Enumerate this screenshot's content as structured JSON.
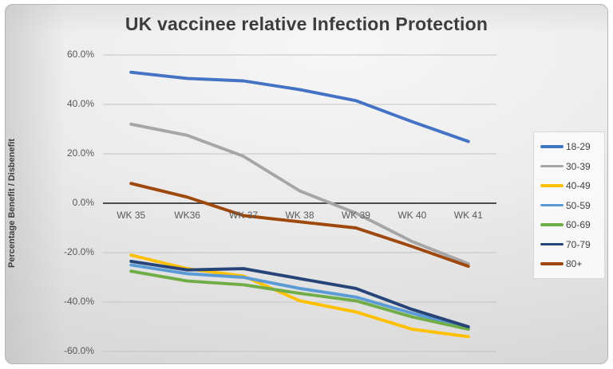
{
  "chart_data": {
    "type": "line",
    "title": "UK vaccinee relative Infection Protection",
    "xlabel": "",
    "ylabel": "Percentage Benefit / Disbenefit",
    "categories": [
      "WK 35",
      "WK36",
      "WK 37",
      "WK 38",
      "WK 39",
      "WK 40",
      "WK 41"
    ],
    "y_tick_values": [
      60,
      40,
      20,
      0,
      -20,
      -40,
      -60
    ],
    "y_tick_labels": [
      "60.0%",
      "40.0%",
      "20.0%",
      "0.0%",
      "-20.0%",
      "-40.0%",
      "-60.0%"
    ],
    "ylim": [
      -60,
      60
    ],
    "grid": true,
    "legend_position": "right",
    "zero_axis_color": "#4d4d4d",
    "gridline_color": "#c3c3c3",
    "series": [
      {
        "name": "18-29",
        "color": "#4472C4",
        "values": [
          53,
          50.5,
          49.5,
          46,
          41.5,
          33,
          25
        ]
      },
      {
        "name": "30-39",
        "color": "#A6A6A6",
        "values": [
          32,
          27.5,
          19,
          5,
          -4,
          -15.5,
          -24.5
        ]
      },
      {
        "name": "40-49",
        "color": "#FFC000",
        "values": [
          -21,
          -26.5,
          -29.5,
          -39.5,
          -44,
          -51,
          -54
        ]
      },
      {
        "name": "50-59",
        "color": "#5B9BD5",
        "values": [
          -25,
          -28.5,
          -30,
          -34.5,
          -38,
          -44.5,
          -50.5
        ]
      },
      {
        "name": "60-69",
        "color": "#70AD47",
        "values": [
          -27.5,
          -31.5,
          -33,
          -36.5,
          -39.5,
          -46,
          -51
        ]
      },
      {
        "name": "70-79",
        "color": "#264478",
        "values": [
          -23.5,
          -27,
          -26.5,
          -30.5,
          -34.5,
          -43,
          -50
        ]
      },
      {
        "name": "80+",
        "color": "#9E480E",
        "values": [
          8,
          2.5,
          -5,
          -7.5,
          -10,
          -17.5,
          -25.5
        ]
      }
    ]
  }
}
